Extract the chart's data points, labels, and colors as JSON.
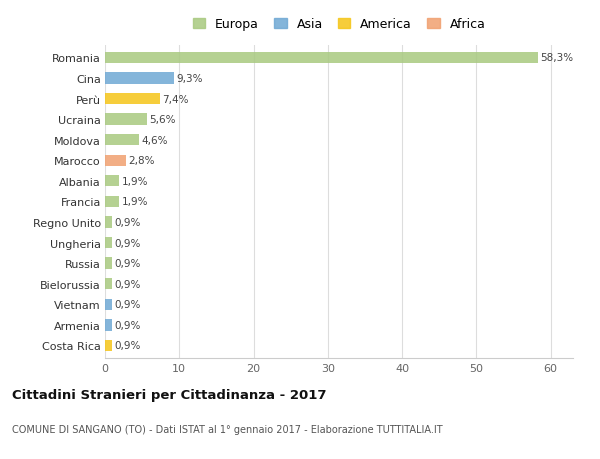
{
  "countries": [
    "Romania",
    "Cina",
    "Perù",
    "Ucraina",
    "Moldova",
    "Marocco",
    "Albania",
    "Francia",
    "Regno Unito",
    "Ungheria",
    "Russia",
    "Bielorussia",
    "Vietnam",
    "Armenia",
    "Costa Rica"
  ],
  "values": [
    58.3,
    9.3,
    7.4,
    5.6,
    4.6,
    2.8,
    1.9,
    1.9,
    0.9,
    0.9,
    0.9,
    0.9,
    0.9,
    0.9,
    0.9
  ],
  "labels": [
    "58,3%",
    "9,3%",
    "7,4%",
    "5,6%",
    "4,6%",
    "2,8%",
    "1,9%",
    "1,9%",
    "0,9%",
    "0,9%",
    "0,9%",
    "0,9%",
    "0,9%",
    "0,9%",
    "0,9%"
  ],
  "continents": [
    "Europa",
    "Asia",
    "America",
    "Europa",
    "Europa",
    "Africa",
    "Europa",
    "Europa",
    "Europa",
    "Europa",
    "Europa",
    "Europa",
    "Asia",
    "Asia",
    "America"
  ],
  "continent_colors": {
    "Europa": "#a8c97f",
    "Asia": "#6fa8d4",
    "America": "#f5c518",
    "Africa": "#f0a070"
  },
  "legend_order": [
    "Europa",
    "Asia",
    "America",
    "Africa"
  ],
  "title": "Cittadini Stranieri per Cittadinanza - 2017",
  "subtitle": "COMUNE DI SANGANO (TO) - Dati ISTAT al 1° gennaio 2017 - Elaborazione TUTTITALIA.IT",
  "xlim": [
    0,
    63
  ],
  "xticks": [
    0,
    10,
    20,
    30,
    40,
    50,
    60
  ],
  "background_color": "#ffffff",
  "grid_color": "#dddddd"
}
